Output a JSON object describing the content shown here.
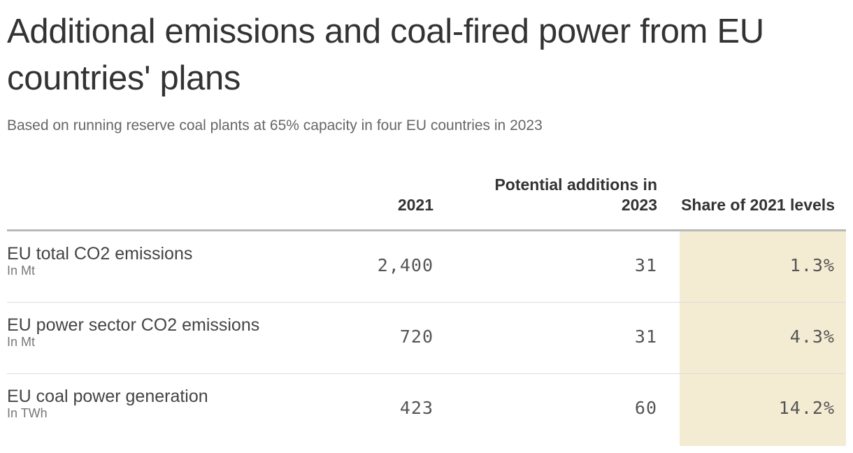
{
  "chart_data": {
    "type": "table",
    "title": "Additional emissions and coal-fired power from EU countries' plans",
    "subtitle": "Based on running reserve coal plants at 65% capacity in four EU countries in 2023",
    "columns": [
      "",
      "2021",
      "Potential additions in 2023",
      "Share of 2021 levels"
    ],
    "highlight_column": "Share of 2021 levels",
    "highlight_color": "#f4ebd3",
    "rows": [
      {
        "label": "EU total CO2 emissions",
        "unit": "In Mt",
        "values": [
          "2,400",
          "31",
          "1.3%"
        ]
      },
      {
        "label": "EU power sector CO2 emissions",
        "unit": "In Mt",
        "values": [
          "720",
          "31",
          "4.3%"
        ]
      },
      {
        "label": "EU coal power generation",
        "unit": "In TWh",
        "values": [
          "423",
          "60",
          "14.2%"
        ]
      }
    ]
  }
}
